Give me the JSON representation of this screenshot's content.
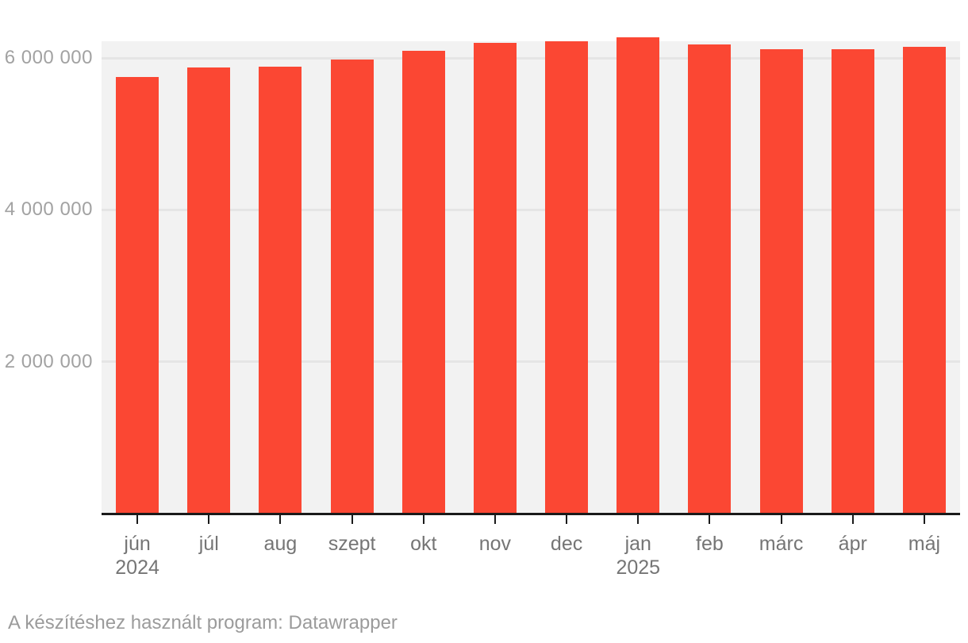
{
  "chart_data": {
    "type": "bar",
    "title": "",
    "xlabel": "",
    "ylabel": "",
    "categories": [
      "jún",
      "júl",
      "aug",
      "szept",
      "okt",
      "nov",
      "dec",
      "jan",
      "feb",
      "márc",
      "ápr",
      "máj"
    ],
    "values": [
      5750000,
      5870000,
      5880000,
      5980000,
      6090000,
      6200000,
      6220000,
      6270000,
      6180000,
      6120000,
      6110000,
      6150000
    ],
    "year_labels": [
      {
        "index": 0,
        "label": "2024"
      },
      {
        "index": 7,
        "label": "2025"
      }
    ],
    "y_ticks": [
      {
        "value": 2000000,
        "label": "2 000 000"
      },
      {
        "value": 4000000,
        "label": "4 000 000"
      },
      {
        "value": 6000000,
        "label": "6 000 000"
      }
    ],
    "ylim": [
      0,
      6270000
    ],
    "grid": true,
    "legend": false,
    "bar_color": "#fb4733",
    "plot_bg": "#f2f2f2",
    "grid_color": "#e5e5e5",
    "axis_line_color": "#1a1a1a",
    "x_label_color": "#757575",
    "y_label_color": "#a2a2a2",
    "footer_color": "#9b9b9b"
  },
  "footer": {
    "attribution": "A készítéshez használt program: Datawrapper"
  }
}
